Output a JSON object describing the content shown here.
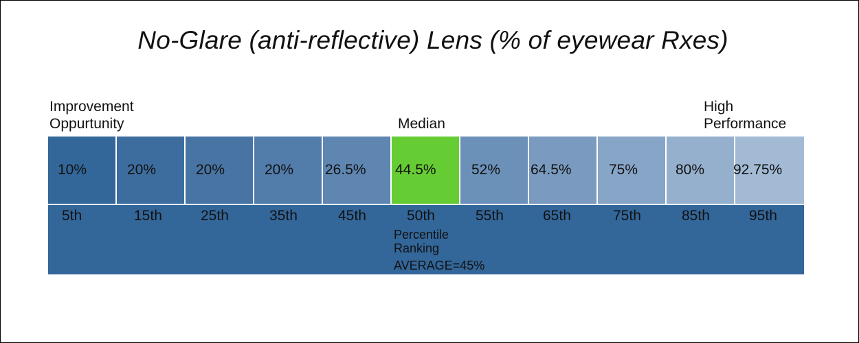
{
  "chart_data": {
    "type": "table",
    "title": "No-Glare (anti-reflective) Lens (% of eyewear Rxes)",
    "labels": {
      "left_line1": "Improvement",
      "left_line2": "Oppurtunity",
      "middle": "Median",
      "right_line1": "High",
      "right_line2": "Performance"
    },
    "categories": [
      "5th",
      "15th",
      "25th",
      "35th",
      "45th",
      "50th",
      "55th",
      "65th",
      "75th",
      "85th",
      "95th"
    ],
    "values": [
      10,
      20,
      20,
      20,
      26.5,
      44.5,
      52,
      64.5,
      75,
      80,
      92.75
    ],
    "value_labels": [
      "10%",
      "20%",
      "20%",
      "20%",
      "26.5%",
      "44.5%",
      "52%",
      "64.5%",
      "75%",
      "80%",
      "92.75%"
    ],
    "highlight_index": 5,
    "band_text": {
      "line1": "Percentile",
      "line2": "Ranking",
      "average": "AVERAGE=45%"
    },
    "colors": {
      "cells": [
        "#336699",
        "#3d6d9e",
        "#4774a3",
        "#527ca9",
        "#5e86b0",
        "#66cc33",
        "#6c91b8",
        "#7a9bbf",
        "#87a5c6",
        "#95b0cd",
        "#a3bad4"
      ],
      "band": "#336699",
      "highlight": "#66cc33"
    }
  }
}
